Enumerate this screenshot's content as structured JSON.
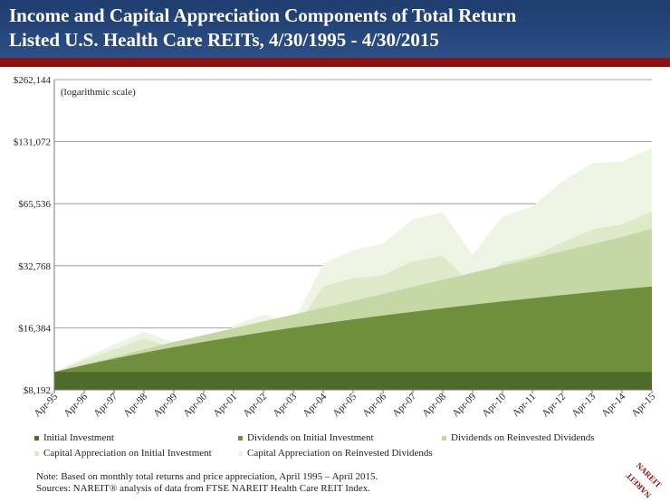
{
  "header": {
    "title_line1": "Income and Capital Appreciation Components of Total Return",
    "title_line2": "Listed U.S. Health Care REITs, 4/30/1995 - 4/30/2015"
  },
  "colors": {
    "header_bg": "#2c4f86",
    "accent_bar": "#8c1212",
    "initial_investment": "#4e6b2a",
    "dividends_initial": "#6f8f3c",
    "dividends_reinvested": "#c5d8a3",
    "capital_initial": "#dde9c9",
    "capital_reinvested": "#eef4e3"
  },
  "chart_data": {
    "type": "area",
    "stacked": true,
    "scale_note": "(logarithmic scale)",
    "y_scale": "log2",
    "ylim": [
      8192,
      262144
    ],
    "y_ticks": [
      "$8,192",
      "$16,384",
      "$32,768",
      "$65,536",
      "$131,072",
      "$262,144"
    ],
    "x_ticks": [
      "Apr-95",
      "Apr-96",
      "Apr-97",
      "Apr-98",
      "Apr-99",
      "Apr-00",
      "Apr-01",
      "Apr-02",
      "Apr-03",
      "Apr-04",
      "Apr-05",
      "Apr-06",
      "Apr-07",
      "Apr-08",
      "Apr-09",
      "Apr-10",
      "Apr-11",
      "Apr-12",
      "Apr-13",
      "Apr-14",
      "Apr-15"
    ],
    "grid": true,
    "legend_position": "bottom",
    "series": [
      {
        "name": "Initial Investment",
        "values": [
          10000,
          10000,
          10000,
          10000,
          10000,
          10000,
          10000,
          10000,
          10000,
          10000,
          10000,
          10000,
          10000,
          10000,
          10000,
          10000,
          10000,
          10000,
          10000,
          10000,
          10000
        ]
      },
      {
        "name": "Dividends on Initial Investment",
        "values": [
          10000,
          10800,
          11600,
          12400,
          13200,
          14000,
          14800,
          15600,
          16400,
          17200,
          18000,
          18800,
          19600,
          20400,
          21200,
          22000,
          22800,
          23600,
          24400,
          25200,
          26000
        ]
      },
      {
        "name": "Dividends on Reinvested Dividends",
        "values": [
          10000,
          10850,
          11800,
          12850,
          14000,
          15100,
          16300,
          17600,
          19000,
          20500,
          22100,
          23900,
          25900,
          28000,
          30300,
          32800,
          35500,
          38500,
          41700,
          45200,
          49500
        ]
      },
      {
        "name": "Capital Appreciation on Initial Investment",
        "values": [
          10000,
          11400,
          12900,
          14500,
          13200,
          11300,
          15200,
          16500,
          15800,
          26000,
          28500,
          29500,
          34500,
          36500,
          26500,
          34000,
          36500,
          42500,
          49000,
          52000,
          60000
        ]
      },
      {
        "name": "Capital Appreciation on Reinvested Dividends",
        "values": [
          10000,
          11700,
          13600,
          15700,
          13900,
          11100,
          16800,
          19000,
          17500,
          33500,
          39000,
          42000,
          55000,
          59500,
          37000,
          57000,
          63500,
          84000,
          103000,
          105000,
          122000
        ]
      }
    ]
  },
  "notes": {
    "line1": "Note: Based on monthly total returns and price appreciation, April 1995 – April 2015.",
    "line2": "Sources: NAREIT® analysis of data from FTSE NAREIT Health Care REIT Index."
  },
  "logo": {
    "text": "NAREIT",
    "icon": "nareit-logo-icon"
  }
}
